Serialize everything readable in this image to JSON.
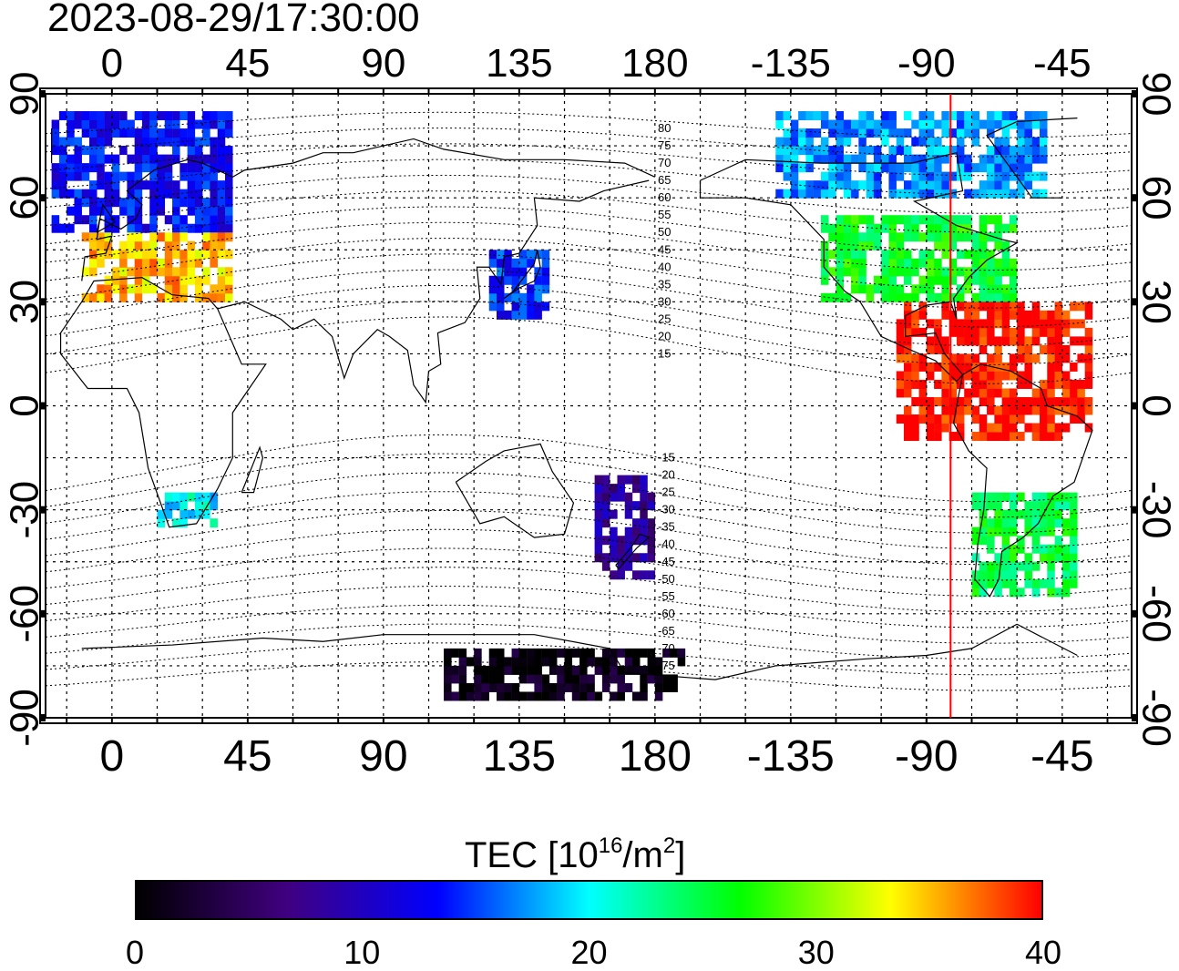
{
  "timestamp": "2023-08-29/17:30:00",
  "map": {
    "projection": "equirectangular, centered near 60E",
    "top_lon_labels": [
      "0",
      "45",
      "90",
      "135",
      "180",
      "-135",
      "-90",
      "-45"
    ],
    "bottom_lon_labels": [
      "0",
      "45",
      "90",
      "135",
      "180",
      "-135",
      "-90",
      "-45"
    ],
    "left_lat_labels": [
      "90",
      "60",
      "30",
      "0",
      "-30",
      "-60",
      "-90"
    ],
    "right_lat_labels": [
      "90",
      "60",
      "30",
      "0",
      "-30",
      "-60",
      "-90"
    ],
    "lon_ticks": [
      0,
      45,
      90,
      135,
      180,
      -135,
      -90,
      -45
    ],
    "lat_ticks": [
      90,
      60,
      30,
      0,
      -30,
      -60,
      -90
    ],
    "magnetic_latitude_labels": [
      "80",
      "75",
      "70",
      "65",
      "60",
      "55",
      "50",
      "45",
      "40",
      "35",
      "30",
      "25",
      "20",
      "15",
      "-15",
      "-20",
      "-25",
      "-30",
      "-35",
      "-40",
      "-45",
      "-50",
      "-55",
      "-60",
      "-65",
      "-70",
      "-75"
    ],
    "terminator_longitude": -82,
    "terminator_color": "#ff0000",
    "colors": {
      "background": "#ffffff",
      "frame": "#000000",
      "grid": "#000000",
      "coast": "#000000"
    }
  },
  "colorbar": {
    "title": "TEC  [10",
    "title_exp": "16",
    "title_unit": "/m",
    "title_unit_exp": "2",
    "title_close": "]",
    "min": 0,
    "max": 40,
    "tick_labels": [
      "0",
      "10",
      "20",
      "30",
      "40"
    ],
    "colormap": [
      "#000000",
      "#400080",
      "#0000ff",
      "#00ffff",
      "#00ff00",
      "#ffff00",
      "#ff0000"
    ]
  },
  "tec_regions": [
    {
      "name": "north-america",
      "lon": [
        -125,
        -60
      ],
      "lat": [
        30,
        55
      ],
      "value": 26
    },
    {
      "name": "caribbean-south-america-north",
      "lon": [
        -100,
        -35
      ],
      "lat": [
        -10,
        30
      ],
      "value": 40
    },
    {
      "name": "south-america-south",
      "lon": [
        -75,
        -40
      ],
      "lat": [
        -55,
        -25
      ],
      "value": 25
    },
    {
      "name": "arctic-canada",
      "lon": [
        -140,
        -50
      ],
      "lat": [
        60,
        85
      ],
      "value": 17
    },
    {
      "name": "europe-north",
      "lon": [
        -20,
        40
      ],
      "lat": [
        50,
        85
      ],
      "value": 13
    },
    {
      "name": "europe-south",
      "lon": [
        -10,
        40
      ],
      "lat": [
        30,
        50
      ],
      "value": 35
    },
    {
      "name": "southern-africa",
      "lon": [
        15,
        35
      ],
      "lat": [
        -35,
        -25
      ],
      "value": 20
    },
    {
      "name": "japan",
      "lon": [
        125,
        145
      ],
      "lat": [
        25,
        45
      ],
      "value": 14
    },
    {
      "name": "new-zealand-pacific",
      "lon": [
        160,
        180
      ],
      "lat": [
        -50,
        -20
      ],
      "value": 8
    },
    {
      "name": "antarctica",
      "lon": [
        110,
        190
      ],
      "lat": [
        -85,
        -70
      ],
      "value": 1
    }
  ]
}
